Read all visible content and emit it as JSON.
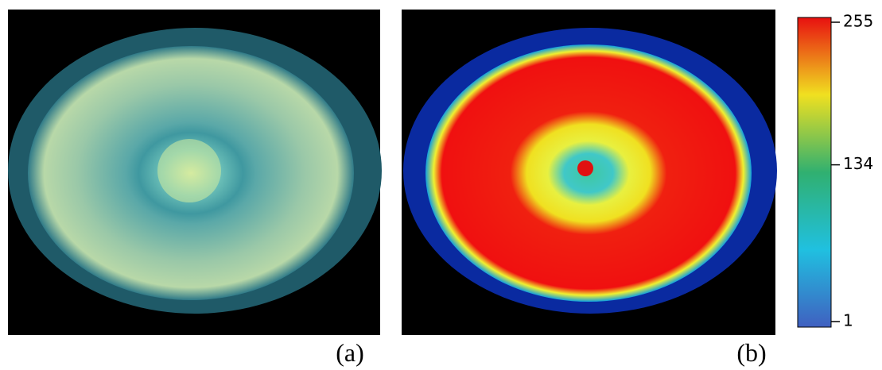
{
  "panels": [
    {
      "label": "(a)"
    },
    {
      "label": "(b)"
    }
  ],
  "colorbar": {
    "range": [
      1,
      255
    ],
    "ticks": [
      1,
      134,
      255
    ]
  }
}
